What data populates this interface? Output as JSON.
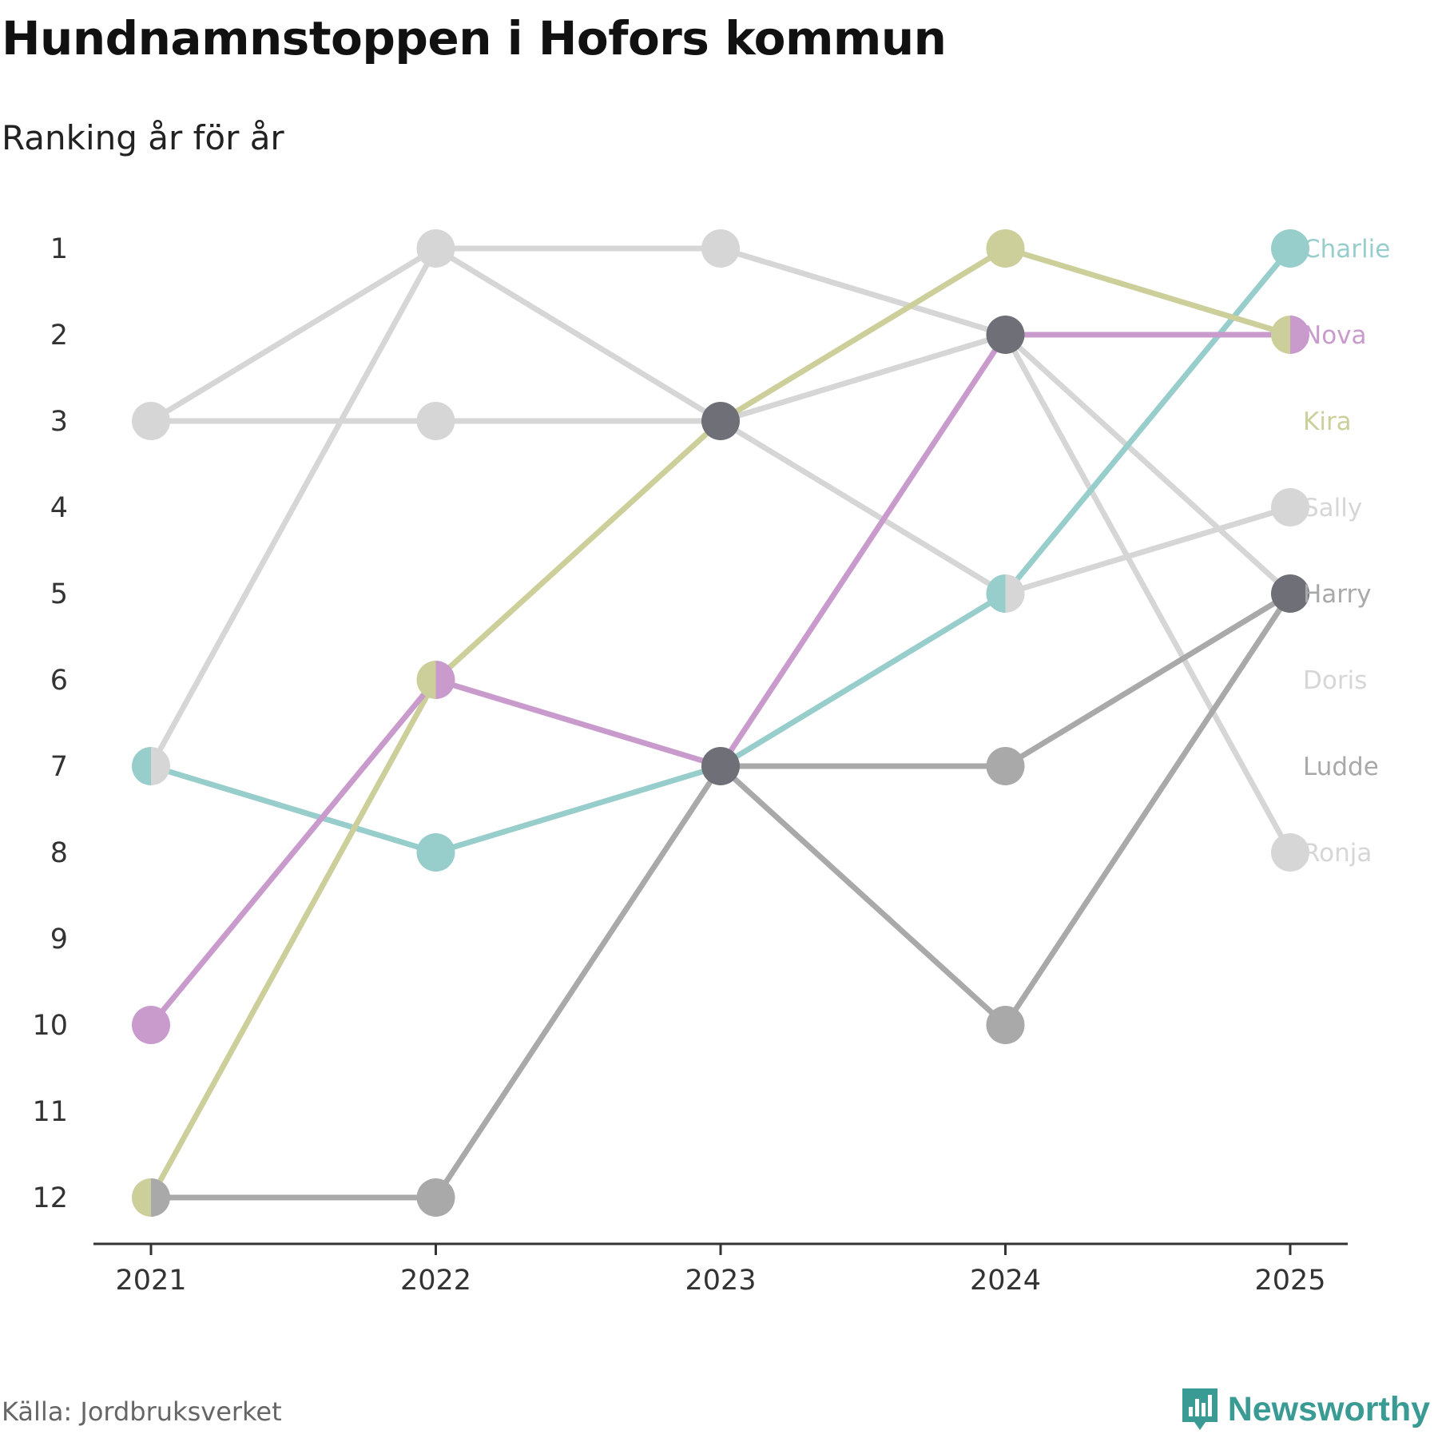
{
  "title": "Hundnamnstoppen i Hofors kommun",
  "subtitle": "Ranking år för år",
  "source": "Källa: Jordbruksverket",
  "brand": {
    "name": "Newsworthy",
    "icon": "newsworthy-bar-chart-icon",
    "color": "#3a9b95"
  },
  "chart_data": {
    "type": "line",
    "x": [
      "2021",
      "2022",
      "2023",
      "2024",
      "2025"
    ],
    "y_ticks": [
      "1",
      "2",
      "3",
      "4",
      "5",
      "6",
      "7",
      "8",
      "9",
      "10",
      "11",
      "12"
    ],
    "ylim": [
      12,
      1
    ],
    "y_reversed": true,
    "grid": false,
    "legend": "end-labels-right",
    "series": [
      {
        "name": "Sally",
        "color": "#d6d6d6",
        "values": [
          3,
          1,
          3,
          5,
          4
        ]
      },
      {
        "name": "Doris",
        "color": "#d6d6d6",
        "values": [
          3,
          3,
          3,
          2,
          5
        ]
      },
      {
        "name": "Ronja",
        "color": "#d6d6d6",
        "values": [
          7,
          1,
          1,
          2,
          8
        ]
      },
      {
        "name": "Ludde",
        "color": "#a9a9a9",
        "values": [
          12,
          12,
          7,
          10,
          5
        ]
      },
      {
        "name": "Harry",
        "color": "#a9a9a9",
        "values": [
          null,
          null,
          7,
          7,
          5
        ]
      },
      {
        "name": "Charlie",
        "color": "#97cdcb",
        "values": [
          7,
          8,
          7,
          5,
          1
        ]
      },
      {
        "name": "Kira",
        "color": "#cccf9a",
        "values": [
          12,
          6,
          3,
          1,
          2
        ]
      },
      {
        "name": "Nova",
        "color": "#c99bcd",
        "values": [
          10,
          6,
          7,
          2,
          2
        ]
      }
    ],
    "highlight_points": [
      {
        "x": "2023",
        "y": 3,
        "color": "#6f6f77"
      },
      {
        "x": "2023",
        "y": 7,
        "color": "#6f6f77"
      },
      {
        "x": "2024",
        "y": 2,
        "color": "#6f6f77"
      },
      {
        "x": "2025",
        "y": 5,
        "color": "#6f6f77"
      }
    ],
    "end_labels": [
      {
        "name": "Charlie",
        "rank": 1,
        "color": "#97cdcb"
      },
      {
        "name": "Nova",
        "rank": 2,
        "color": "#c99bcd"
      },
      {
        "name": "Kira",
        "rank": 3,
        "color": "#cccf9a"
      },
      {
        "name": "Sally",
        "rank": 4,
        "color": "#d6d6d6"
      },
      {
        "name": "Harry",
        "rank": 5,
        "color": "#a9a9a9"
      },
      {
        "name": "Doris",
        "rank": 6,
        "color": "#d6d6d6"
      },
      {
        "name": "Ludde",
        "rank": 7,
        "color": "#a9a9a9"
      },
      {
        "name": "Ronja",
        "rank": 8,
        "color": "#d6d6d6"
      }
    ]
  }
}
